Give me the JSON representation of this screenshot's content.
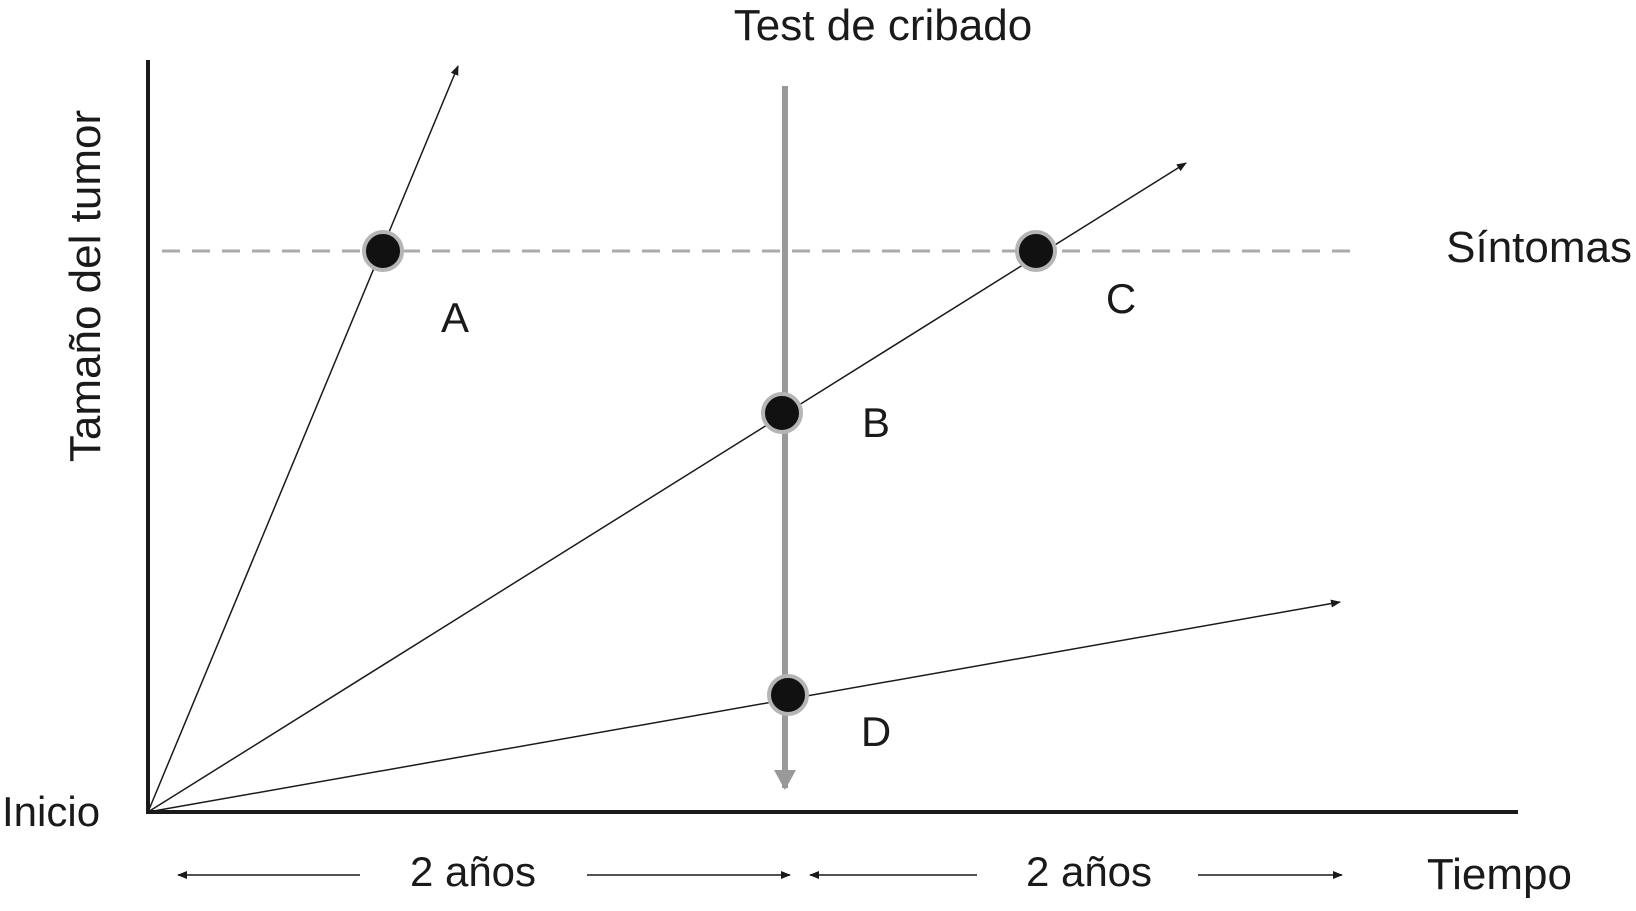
{
  "title": "Test de cribado",
  "y_axis_label": "Tamaño del tumor",
  "x_axis_label": "Tiempo",
  "origin_label": "Inicio",
  "threshold_label": "Síntomas",
  "interval_labels": [
    "2 años",
    "2 años"
  ],
  "points": [
    {
      "label": "A"
    },
    {
      "label": "B"
    },
    {
      "label": "C"
    },
    {
      "label": "D"
    }
  ],
  "colors": {
    "axis": "#1a1a1a",
    "growth_line": "#1a1a1a",
    "screening_line": "#999999",
    "threshold_line": "#aaaaaa",
    "point_fill": "#111111",
    "point_ring": "#b5b5b5"
  }
}
